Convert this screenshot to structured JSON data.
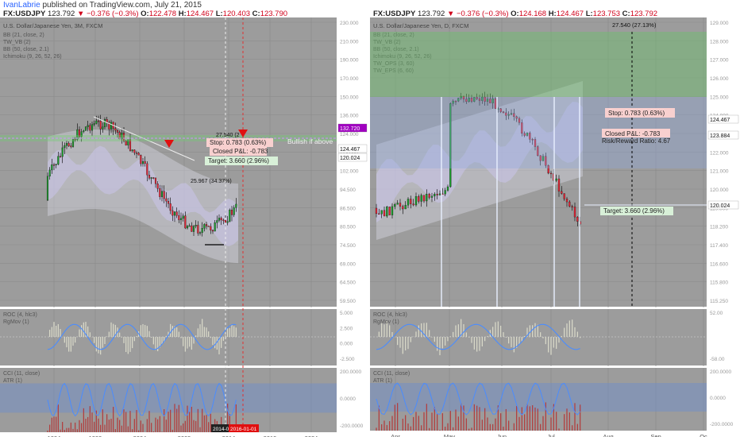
{
  "header": {
    "author": "IvanLabrie",
    "published": "published on TradingView.com, July 21, 2015"
  },
  "colors": {
    "panel": "#9c9c9c",
    "panel_dark": "#8f8f8f",
    "up": "#1a9c2a",
    "down": "#e32636",
    "ichimoku": "#b9b2e6",
    "bb": "#e8e8f5",
    "roc": "#dcdccc",
    "rgmov": "#4a8cff",
    "cci_bar": "#b33a3a",
    "band": "#6d8fcf",
    "price_tag": "#c000c0",
    "stop_bg": "#f8d0cf",
    "target_bg": "#d8f0d8"
  },
  "chart_data": [
    {
      "type": "candlestick",
      "symbol": "FX:USDJPY",
      "quote": {
        "last": "123.792",
        "change": "−0.376 (−0.3%)",
        "o": "122.478",
        "h": "124.467",
        "l": "120.403",
        "c": "123.790"
      },
      "title": "U.S. Dollar/Japanese Yen, 3M, FXCM",
      "studies": [
        "BB (21, close, 2)",
        "TW_VB (2)",
        "BB (50, close, 2.1)",
        "Ichimoku (9, 26, 52, 26)"
      ],
      "y_ticks": [
        "230.000",
        "210.000",
        "190.000",
        "170.000",
        "150.000",
        "136.000",
        "124.000",
        "113.000",
        "102.000",
        "94.500",
        "86.500",
        "80.500",
        "74.500",
        "69.000",
        "64.500",
        "59.500"
      ],
      "y_range": [
        59.5,
        230
      ],
      "x_ticks": [
        "1994",
        "1999",
        "2004",
        "2009",
        "2014",
        "2019",
        "2024"
      ],
      "price_tags": [
        {
          "label": "132.720",
          "kind": "target"
        },
        {
          "label": "124.467",
          "kind": "last"
        },
        {
          "label": "120.024",
          "kind": "level"
        }
      ],
      "annotations": {
        "measure_top": "27.540 (2",
        ":lower_measure": "",
        "measure_bottom": "25.967 (34.37%)",
        "bullish": "Bullish if above",
        "stop": "Stop: 0.783 (0.63%)",
        "pl": "Closed P&L: -0.783",
        "rr": "Risk/Reward Ratio: 4.67",
        "target": "Target: 3.660 (2.96%)"
      },
      "date_tags": [
        "2014-0",
        "2016-01-01"
      ],
      "roc": {
        "label": "ROC (4, hlc3)",
        "sub": "RgMov (1)",
        "ticks": [
          "5.000",
          "2.500",
          "0.000",
          "-2.500"
        ]
      },
      "cci": {
        "label": "CCI (11, close)",
        "sub": "ATR (1)",
        "ticks": [
          "200.0000",
          "0.0000",
          "-200.0000"
        ]
      }
    },
    {
      "type": "candlestick",
      "symbol": "FX:USDJPY",
      "quote": {
        "last": "123.792",
        "change": "−0.376 (−0.3%)",
        "o": "124.168",
        "h": "124.467",
        "l": "123.753",
        "c": "123.792"
      },
      "title": "U.S. Dollar/Japanese Yen, D, FXCM",
      "studies": [
        "BB (21, close, 2)",
        "TW_VB (2)",
        "BB (50, close, 2.1)",
        "Ichimoku (9, 26, 52, 26)",
        "TW_OPS (3, 60)",
        "TW_EPS (6, 60)"
      ],
      "y_ticks": [
        "129.000",
        "128.000",
        "127.000",
        "126.000",
        "125.000",
        "124.000",
        "123.000",
        "122.000",
        "121.000",
        "120.000",
        "119.000",
        "118.200",
        "117.400",
        "116.600",
        "115.800",
        "115.250"
      ],
      "y_range": [
        115.25,
        129.0
      ],
      "x_ticks": [
        "Apr",
        "May",
        "Jun",
        "Jul",
        "Aug",
        "Sep",
        "Oc"
      ],
      "price_tags": [
        {
          "label": "124.467",
          "kind": "last"
        },
        {
          "label": "123.884",
          "kind": "level"
        },
        {
          "label": "120.024",
          "kind": "level"
        }
      ],
      "annotations": {
        "measure_top": "27.540 (27.13%)",
        "stop": "Stop: 0.783 (0.63%)",
        "pl": "Closed P&L: -0.783",
        "rr": "Risk/Reward Ratio: 4.67",
        "target": "Target: 3.660 (2.96%)"
      },
      "roc": {
        "label": "ROC (4, hlc3)",
        "sub": "RgMov (1)",
        "ticks": [
          "52.00",
          "-58.00"
        ]
      },
      "cci": {
        "label": "CCI (11, close)",
        "sub": "ATR (1)",
        "ticks": [
          "200.0000",
          "0.0000",
          "-200.0000"
        ]
      }
    }
  ]
}
